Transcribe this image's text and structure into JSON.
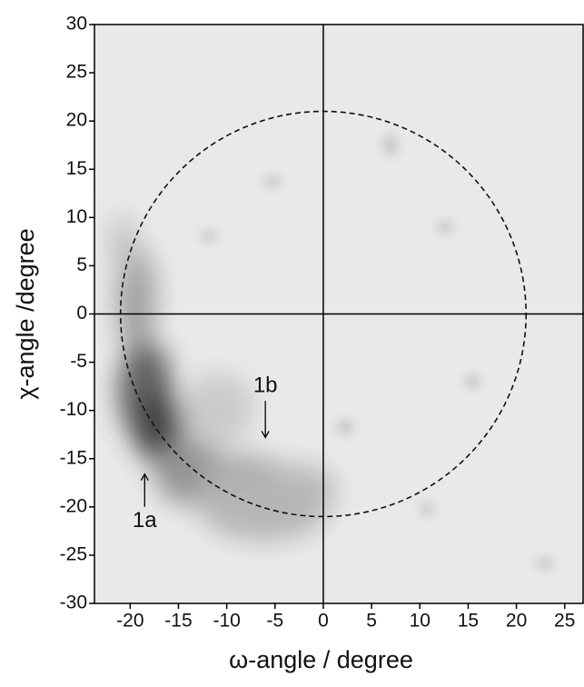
{
  "chart_data": {
    "type": "pole-figure",
    "x_label": "ω-angle / degree",
    "y_label": "χ-angle /degree",
    "xlim": [
      -23.7,
      27
    ],
    "ylim": [
      -30,
      30
    ],
    "xticks": [
      -20,
      -15,
      -10,
      -5,
      0,
      5,
      10,
      15,
      20,
      25
    ],
    "yticks": [
      -30,
      -25,
      -20,
      -15,
      -10,
      -5,
      0,
      5,
      10,
      15,
      20,
      25,
      30
    ],
    "circle_radius": 21,
    "reference_lines": true,
    "annotations": [
      {
        "text": "1a",
        "x": -18.5,
        "y": -21.5,
        "arrow_to": -16.6
      },
      {
        "text": "1b",
        "x": -6,
        "y": -7.5,
        "arrow_to": -12.8
      }
    ]
  }
}
